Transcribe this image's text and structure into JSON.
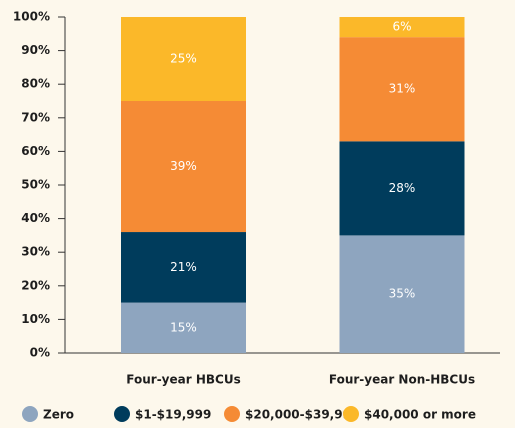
{
  "chart_data": {
    "type": "stacked_bar",
    "categories": [
      "Four-year HBCUs",
      "Four-year Non-HBCUs"
    ],
    "series": [
      {
        "name": "Zero",
        "color": "#8ea5bf",
        "values": [
          15,
          35
        ],
        "value_labels": [
          "15%",
          "35%"
        ]
      },
      {
        "name": "$1-$19,999",
        "color": "#003c5c",
        "values": [
          21,
          28
        ],
        "value_labels": [
          "21%",
          "28%"
        ]
      },
      {
        "name": "$20,000-$39,999",
        "color": "#f58b35",
        "values": [
          39,
          31
        ],
        "value_labels": [
          "39%",
          "31%"
        ]
      },
      {
        "name": "$40,000 or more",
        "color": "#fbb829",
        "values": [
          25,
          6
        ],
        "value_labels": [
          "25%",
          "6%"
        ]
      }
    ],
    "ylim": [
      0,
      100
    ],
    "yticks": [
      {
        "value": 0,
        "label": "0%"
      },
      {
        "value": 10,
        "label": "10%"
      },
      {
        "value": 20,
        "label": "20%"
      },
      {
        "value": 30,
        "label": "30%"
      },
      {
        "value": 40,
        "label": "40%"
      },
      {
        "value": 50,
        "label": "50%"
      },
      {
        "value": 60,
        "label": "60%"
      },
      {
        "value": 70,
        "label": "70%"
      },
      {
        "value": 80,
        "label": "80%"
      },
      {
        "value": 90,
        "label": "90%"
      },
      {
        "value": 100,
        "label": "100%"
      }
    ],
    "legend": "bottom"
  }
}
